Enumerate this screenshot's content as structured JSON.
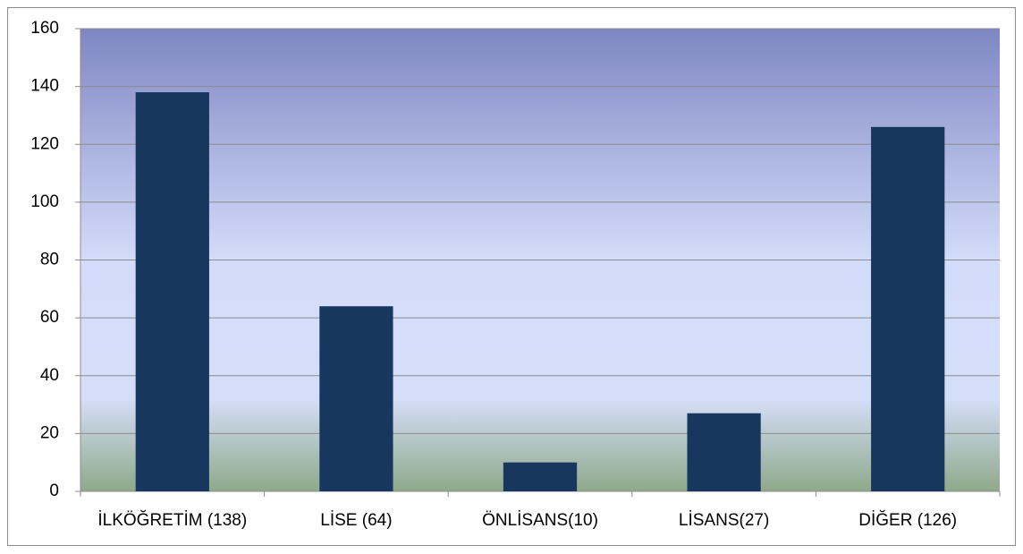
{
  "chart_data": {
    "type": "bar",
    "categories": [
      "İLKÖĞRETİM (138)",
      "LİSE (64)",
      "ÖNLİSANS(10)",
      "LİSANS(27)",
      "DİĞER (126)"
    ],
    "values": [
      138,
      64,
      10,
      27,
      126
    ],
    "color": "#17375e",
    "ylim": [
      0,
      160
    ],
    "yticks": [
      0,
      20,
      40,
      60,
      80,
      100,
      120,
      140,
      160
    ],
    "grid": true
  }
}
